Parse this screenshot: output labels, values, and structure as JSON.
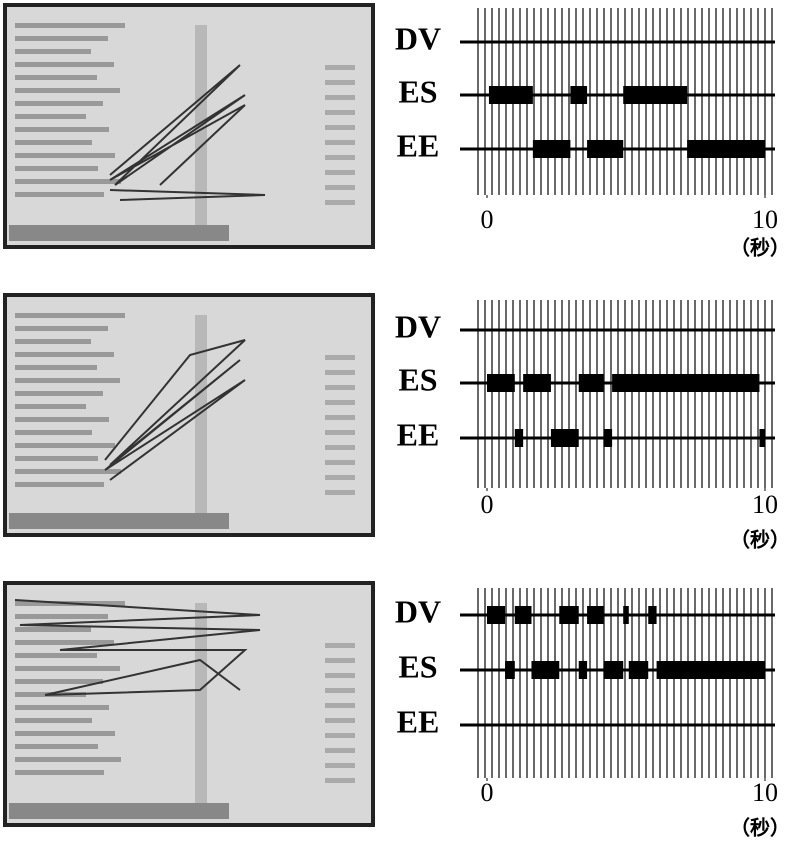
{
  "chart_data": [
    {
      "type": "timeline",
      "xlim": [
        0,
        10
      ],
      "xticks": [
        0,
        10
      ],
      "xlabel": "（秒）",
      "series": [
        {
          "name": "DV",
          "segments": []
        },
        {
          "name": "ES",
          "segments": [
            [
              0.07,
              1.65
            ],
            [
              3.0,
              3.6
            ],
            [
              4.9,
              7.2
            ]
          ]
        },
        {
          "name": "EE",
          "segments": [
            [
              1.65,
              3.0
            ],
            [
              3.6,
              4.9
            ],
            [
              7.2,
              10
            ]
          ]
        }
      ]
    },
    {
      "type": "timeline",
      "xlim": [
        0,
        10
      ],
      "xticks": [
        0,
        10
      ],
      "xlabel": "（秒）",
      "series": [
        {
          "name": "DV",
          "segments": []
        },
        {
          "name": "ES",
          "segments": [
            [
              0,
              1.0
            ],
            [
              1.3,
              2.3
            ],
            [
              3.3,
              4.2
            ],
            [
              4.5,
              9.8
            ]
          ]
        },
        {
          "name": "EE",
          "segments": [
            [
              1.0,
              1.3
            ],
            [
              2.3,
              3.3
            ],
            [
              4.2,
              4.5
            ],
            [
              9.8,
              10
            ]
          ]
        }
      ]
    },
    {
      "type": "timeline",
      "xlim": [
        0,
        10
      ],
      "xticks": [
        0,
        10
      ],
      "xlabel": "（秒）",
      "series": [
        {
          "name": "DV",
          "segments": [
            [
              0,
              0.65
            ],
            [
              1.0,
              1.6
            ],
            [
              2.6,
              3.3
            ],
            [
              3.6,
              4.2
            ],
            [
              4.9,
              5.1
            ],
            [
              5.8,
              6.1
            ]
          ]
        },
        {
          "name": "ES",
          "segments": [
            [
              0.65,
              1.0
            ],
            [
              1.6,
              2.6
            ],
            [
              3.3,
              3.6
            ],
            [
              4.2,
              4.9
            ],
            [
              5.1,
              5.8
            ],
            [
              6.1,
              10
            ]
          ]
        },
        {
          "name": "EE",
          "segments": []
        }
      ]
    }
  ]
}
